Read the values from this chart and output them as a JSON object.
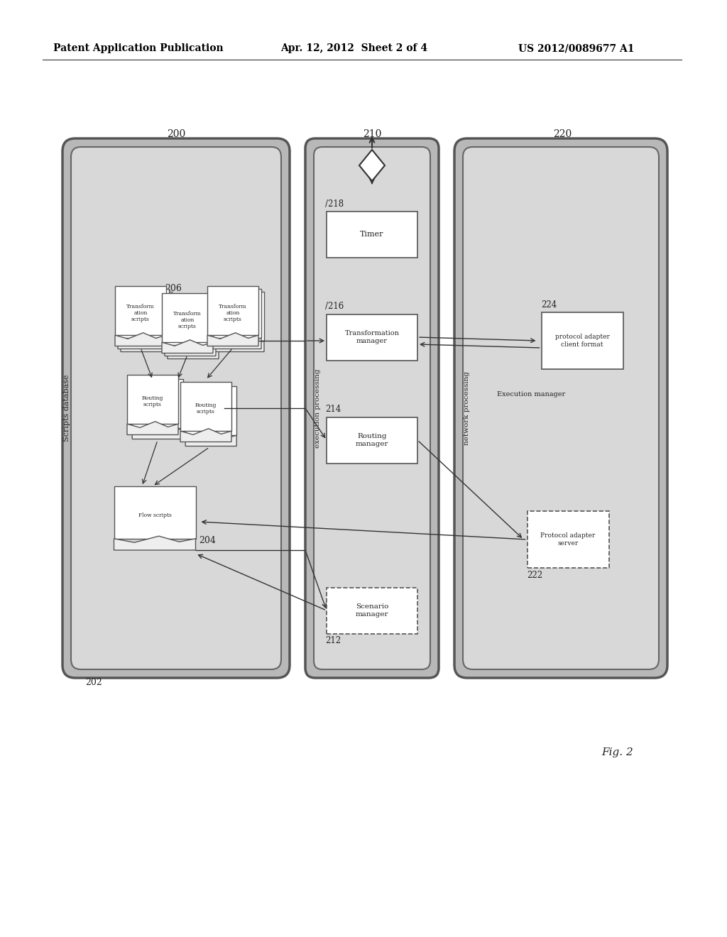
{
  "bg_color": "#ffffff",
  "header_left": "Patent Application Publication",
  "header_mid": "Apr. 12, 2012  Sheet 2 of 4",
  "header_right": "US 2012/0089677 A1",
  "fig_label": "Fig. 2",
  "outer_gray": "#c0c0c0",
  "inner_gray": "#d4d4d4",
  "white": "#ffffff",
  "edge_dark": "#555555",
  "edge_med": "#777777",
  "text_color": "#222222"
}
